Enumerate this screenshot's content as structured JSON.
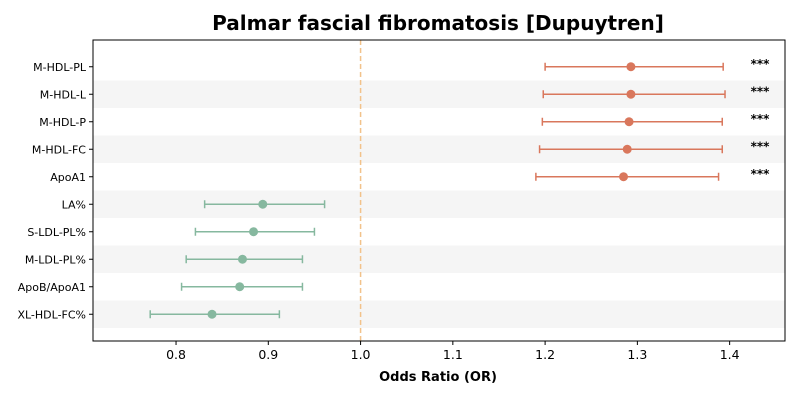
{
  "chart_data": {
    "type": "forest",
    "title": "Palmar fascial fibromatosis [Dupuytren]",
    "xlabel": "Odds Ratio (OR)",
    "ylabel": "",
    "xlim": [
      0.71,
      1.46
    ],
    "xticks": [
      "0.8",
      "0.9",
      "1.0",
      "1.1",
      "1.2",
      "1.3",
      "1.4"
    ],
    "reference_line": 1.0,
    "colors": {
      "positive": "#d9775c",
      "negative": "#86b89f",
      "reference": "#f2c28a",
      "band": "#f5f5f5"
    },
    "rows": [
      {
        "label": "M-HDL-PL",
        "or": 1.293,
        "lo": 1.2,
        "hi": 1.393,
        "sig": "***",
        "direction": "positive"
      },
      {
        "label": "M-HDL-L",
        "or": 1.293,
        "lo": 1.198,
        "hi": 1.395,
        "sig": "***",
        "direction": "positive"
      },
      {
        "label": "M-HDL-P",
        "or": 1.291,
        "lo": 1.197,
        "hi": 1.392,
        "sig": "***",
        "direction": "positive"
      },
      {
        "label": "M-HDL-FC",
        "or": 1.289,
        "lo": 1.194,
        "hi": 1.392,
        "sig": "***",
        "direction": "positive"
      },
      {
        "label": "ApoA1",
        "or": 1.285,
        "lo": 1.19,
        "hi": 1.388,
        "sig": "***",
        "direction": "positive"
      },
      {
        "label": "LA%",
        "or": 0.894,
        "lo": 0.831,
        "hi": 0.961,
        "sig": "",
        "direction": "negative"
      },
      {
        "label": "S-LDL-PL%",
        "or": 0.884,
        "lo": 0.821,
        "hi": 0.95,
        "sig": "",
        "direction": "negative"
      },
      {
        "label": "M-LDL-PL%",
        "or": 0.872,
        "lo": 0.811,
        "hi": 0.937,
        "sig": "",
        "direction": "negative"
      },
      {
        "label": "ApoB/ApoA1",
        "or": 0.869,
        "lo": 0.806,
        "hi": 0.937,
        "sig": "",
        "direction": "negative"
      },
      {
        "label": "XL-HDL-FC%",
        "or": 0.839,
        "lo": 0.772,
        "hi": 0.912,
        "sig": "",
        "direction": "negative"
      }
    ]
  }
}
